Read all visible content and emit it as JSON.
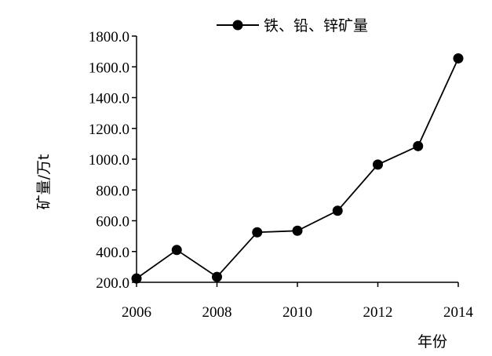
{
  "chart_data": {
    "type": "line",
    "title": "",
    "xlabel": "年份",
    "ylabel": "矿量/万t",
    "xlim": [
      2006,
      2014
    ],
    "ylim": [
      200,
      1800
    ],
    "x_ticks": [
      "2006",
      "2008",
      "2010",
      "2012",
      "2014"
    ],
    "y_ticks": [
      "200.0",
      "400.0",
      "600.0",
      "800.0",
      "1000.0",
      "1200.0",
      "1400.0",
      "1600.0",
      "1800.0"
    ],
    "legend_position": "top-right",
    "grid": false,
    "colors": {
      "series": "#000000"
    },
    "series": [
      {
        "name": "铁、铅、锌矿量",
        "x": [
          2006,
          2007,
          2008,
          2009,
          2010,
          2011,
          2012,
          2013,
          2014
        ],
        "values": [
          225,
          410,
          235,
          525,
          535,
          665,
          965,
          1085,
          1655
        ]
      }
    ]
  }
}
